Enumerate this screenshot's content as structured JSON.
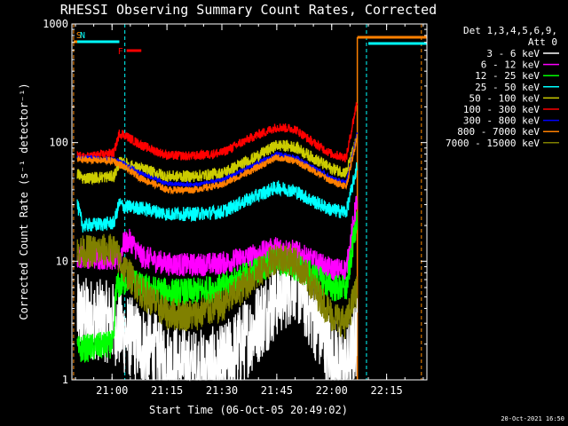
{
  "chart_data": {
    "type": "line",
    "title": "RHESSI Observing Summary Count Rates, Corrected",
    "xlabel": "Start Time (06-Oct-05 20:49:02)",
    "ylabel": "Corrected Count Rate (s⁻¹ detector⁻¹)",
    "y_scale": "log",
    "ylim": [
      1,
      1000
    ],
    "xlim": [
      "20:49:02",
      "22:26:00"
    ],
    "x_ticks": [
      "21:00",
      "21:15",
      "21:30",
      "21:45",
      "22:00",
      "22:15"
    ],
    "y_ticks": [
      "1",
      "10",
      "100",
      "1000"
    ],
    "timestamp": "20-Oct-2021 16:50",
    "legend": {
      "header": [
        "Det 1,3,4,5,6,9,",
        "Att 0"
      ],
      "position": "top-right"
    },
    "flags": [
      {
        "label": "S",
        "color": "#ff8c00",
        "start": "20:49:30",
        "end": "20:50:30"
      },
      {
        "label": "N",
        "color": "#00ffff",
        "start": "20:50:30",
        "end": "21:02:00"
      },
      {
        "label": "F",
        "color": "#ff0000",
        "start": "21:04:00",
        "end": "21:08:00"
      }
    ],
    "orange_bar": {
      "start": "22:07:00",
      "end": "22:26:00"
    },
    "cyan_bar": {
      "start": "22:10:00",
      "end": "22:26:00"
    },
    "vlines": [
      {
        "time": "20:49:30",
        "color": "#ff8c00"
      },
      {
        "time": "21:03:30",
        "color": "#00ffff"
      },
      {
        "time": "22:09:30",
        "color": "#00ffff"
      },
      {
        "time": "22:24:30",
        "color": "#ff8c00"
      }
    ],
    "data_gap": {
      "start": "22:07:30",
      "end": "22:26:00"
    },
    "series": [
      {
        "name": "3 - 6 keV",
        "color": "#ffffff",
        "times": [
          "20:50:30",
          "21:00:30",
          "21:03:00",
          "21:08:00",
          "21:15:00",
          "21:22:00",
          "21:30:00",
          "21:38:00",
          "21:45:00",
          "21:50:00",
          "21:55:00",
          "22:00:00",
          "22:04:00",
          "22:07:00"
        ],
        "values": [
          3.5,
          3.0,
          2.5,
          2.0,
          1.4,
          1.2,
          1.3,
          2.5,
          5.0,
          7.0,
          3.5,
          1.6,
          1.2,
          2.5
        ],
        "noise": 0.35
      },
      {
        "name": "6 - 12 keV",
        "color": "#ff00ff",
        "times": [
          "20:50:30",
          "21:00:30",
          "21:02:00",
          "21:03:00",
          "21:05:00",
          "21:08:00",
          "21:15:00",
          "21:22:00",
          "21:30:00",
          "21:38:00",
          "21:45:00",
          "21:50:00",
          "21:55:00",
          "22:00:00",
          "22:04:00",
          "22:07:00"
        ],
        "values": [
          11,
          10.5,
          10,
          14,
          15,
          11,
          9.5,
          9.3,
          9.6,
          11,
          13,
          12,
          10,
          8.5,
          8.5,
          35
        ],
        "noise": 0.1
      },
      {
        "name": "12 - 25 keV",
        "color": "#00ff00",
        "times": [
          "20:50:30",
          "21:00:30",
          "21:01:00",
          "21:03:00",
          "21:05:00",
          "21:08:00",
          "21:15:00",
          "21:22:00",
          "21:30:00",
          "21:38:00",
          "21:45:00",
          "21:50:00",
          "21:55:00",
          "22:00:00",
          "22:04:00",
          "22:07:00"
        ],
        "values": [
          1.8,
          2.0,
          6.0,
          6.5,
          7.5,
          6.0,
          5.5,
          5.5,
          6.0,
          8.0,
          10,
          9.0,
          7.5,
          6.0,
          5.8,
          25
        ],
        "noise": 0.12
      },
      {
        "name": "25 - 50 keV",
        "color": "#00ffff",
        "times": [
          "20:50:30",
          "20:52:00",
          "21:00:30",
          "21:02:00",
          "21:03:00",
          "21:08:00",
          "21:15:00",
          "21:22:00",
          "21:30:00",
          "21:38:00",
          "21:45:00",
          "21:50:00",
          "21:55:00",
          "22:00:00",
          "22:04:00",
          "22:07:00"
        ],
        "values": [
          30,
          20,
          21,
          31,
          29,
          28,
          25,
          25,
          26,
          34,
          42,
          39,
          32,
          27,
          26,
          65
        ],
        "noise": 0.06
      },
      {
        "name": "50 - 100 keV",
        "color": "#cccc00",
        "times": [
          "20:50:30",
          "20:52:00",
          "21:00:30",
          "21:02:00",
          "21:03:00",
          "21:08:00",
          "21:15:00",
          "21:22:00",
          "21:30:00",
          "21:38:00",
          "21:45:00",
          "21:50:00",
          "21:55:00",
          "22:00:00",
          "22:04:00",
          "22:07:00"
        ],
        "values": [
          55,
          50,
          52,
          68,
          67,
          60,
          52,
          52,
          55,
          72,
          95,
          92,
          74,
          60,
          56,
          110
        ],
        "noise": 0.05
      },
      {
        "name": "100 - 300 keV",
        "color": "#ff0000",
        "times": [
          "20:50:30",
          "20:52:00",
          "21:00:30",
          "21:02:00",
          "21:03:00",
          "21:08:00",
          "21:15:00",
          "21:22:00",
          "21:30:00",
          "21:38:00",
          "21:45:00",
          "21:50:00",
          "21:55:00",
          "22:00:00",
          "22:04:00",
          "22:07:00"
        ],
        "values": [
          78,
          75,
          82,
          120,
          118,
          95,
          78,
          77,
          82,
          110,
          135,
          130,
          100,
          80,
          75,
          230
        ],
        "noise": 0.04
      },
      {
        "name": "300 - 800 keV",
        "color": "#0000ff",
        "times": [
          "20:50:30",
          "21:00:30",
          "21:03:00",
          "21:08:00",
          "21:15:00",
          "21:22:00",
          "21:30:00",
          "21:38:00",
          "21:45:00",
          "21:50:00",
          "21:55:00",
          "22:00:00",
          "22:04:00",
          "22:07:00"
        ],
        "values": [
          75,
          72,
          67,
          55,
          45,
          44,
          48,
          63,
          80,
          75,
          62,
          50,
          46,
          120
        ],
        "noise": 0.02
      },
      {
        "name": "800 - 7000 keV",
        "color": "#ff8000",
        "times": [
          "20:50:30",
          "21:00:30",
          "21:03:00",
          "21:08:00",
          "21:15:00",
          "21:22:00",
          "21:30:00",
          "21:38:00",
          "21:45:00",
          "21:50:00",
          "21:55:00",
          "22:00:00",
          "22:04:00",
          "22:07:00"
        ],
        "values": [
          72,
          70,
          63,
          50,
          40,
          40,
          44,
          58,
          75,
          70,
          58,
          47,
          43,
          115
        ],
        "noise": 0.03
      },
      {
        "name": "7000 - 15000 keV",
        "color": "#808000",
        "times": [
          "20:50:30",
          "21:00:30",
          "21:03:00",
          "21:08:00",
          "21:15:00",
          "21:22:00",
          "21:30:00",
          "21:38:00",
          "21:45:00",
          "21:50:00",
          "21:55:00",
          "22:00:00",
          "22:04:00",
          "22:07:00"
        ],
        "values": [
          12,
          12.5,
          9,
          5.5,
          3.6,
          3.5,
          4.2,
          7,
          11,
          10,
          6,
          3.5,
          3,
          6
        ],
        "noise": 0.14
      }
    ]
  }
}
